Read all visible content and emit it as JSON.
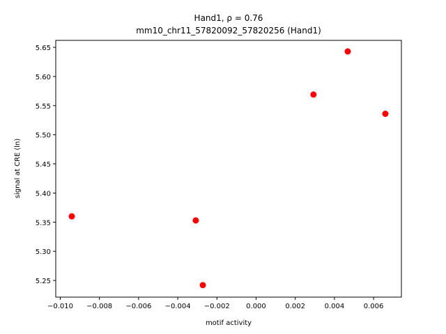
{
  "chart_data": {
    "type": "scatter",
    "title": "Hand1, ρ = 0.76",
    "subtitle": "mm10_chr11_57820092_57820256 (Hand1)",
    "x_label": "motif activity",
    "y_label": "signal at CRE (ln)",
    "color": "#ff0000",
    "x": [
      -0.00941,
      -0.00308,
      -0.00272,
      0.00293,
      0.00468,
      0.0066
    ],
    "values": [
      5.36,
      5.353,
      5.242,
      5.569,
      5.643,
      5.536
    ],
    "xlim": [
      -0.01023,
      0.00742
    ],
    "ylim": [
      5.2214,
      5.662
    ],
    "xticks": [
      {
        "value": -0.01,
        "label": "−0.010"
      },
      {
        "value": -0.008,
        "label": "−0.008"
      },
      {
        "value": -0.006,
        "label": "−0.006"
      },
      {
        "value": -0.004,
        "label": "−0.004"
      },
      {
        "value": -0.002,
        "label": "−0.002"
      },
      {
        "value": 0,
        "label": "0.000"
      },
      {
        "value": 0.002,
        "label": "0.002"
      },
      {
        "value": 0.004,
        "label": "0.004"
      },
      {
        "value": 0.006,
        "label": "0.006"
      }
    ],
    "yticks": [
      5.25,
      {
        "value": 5.3,
        "label": "5.30"
      },
      5.35,
      {
        "value": 5.4,
        "label": "5.40"
      },
      5.45,
      {
        "value": 5.5,
        "label": "5.50"
      },
      5.55,
      {
        "value": 5.6,
        "label": "5.60"
      },
      5.65
    ],
    "grid": false
  }
}
